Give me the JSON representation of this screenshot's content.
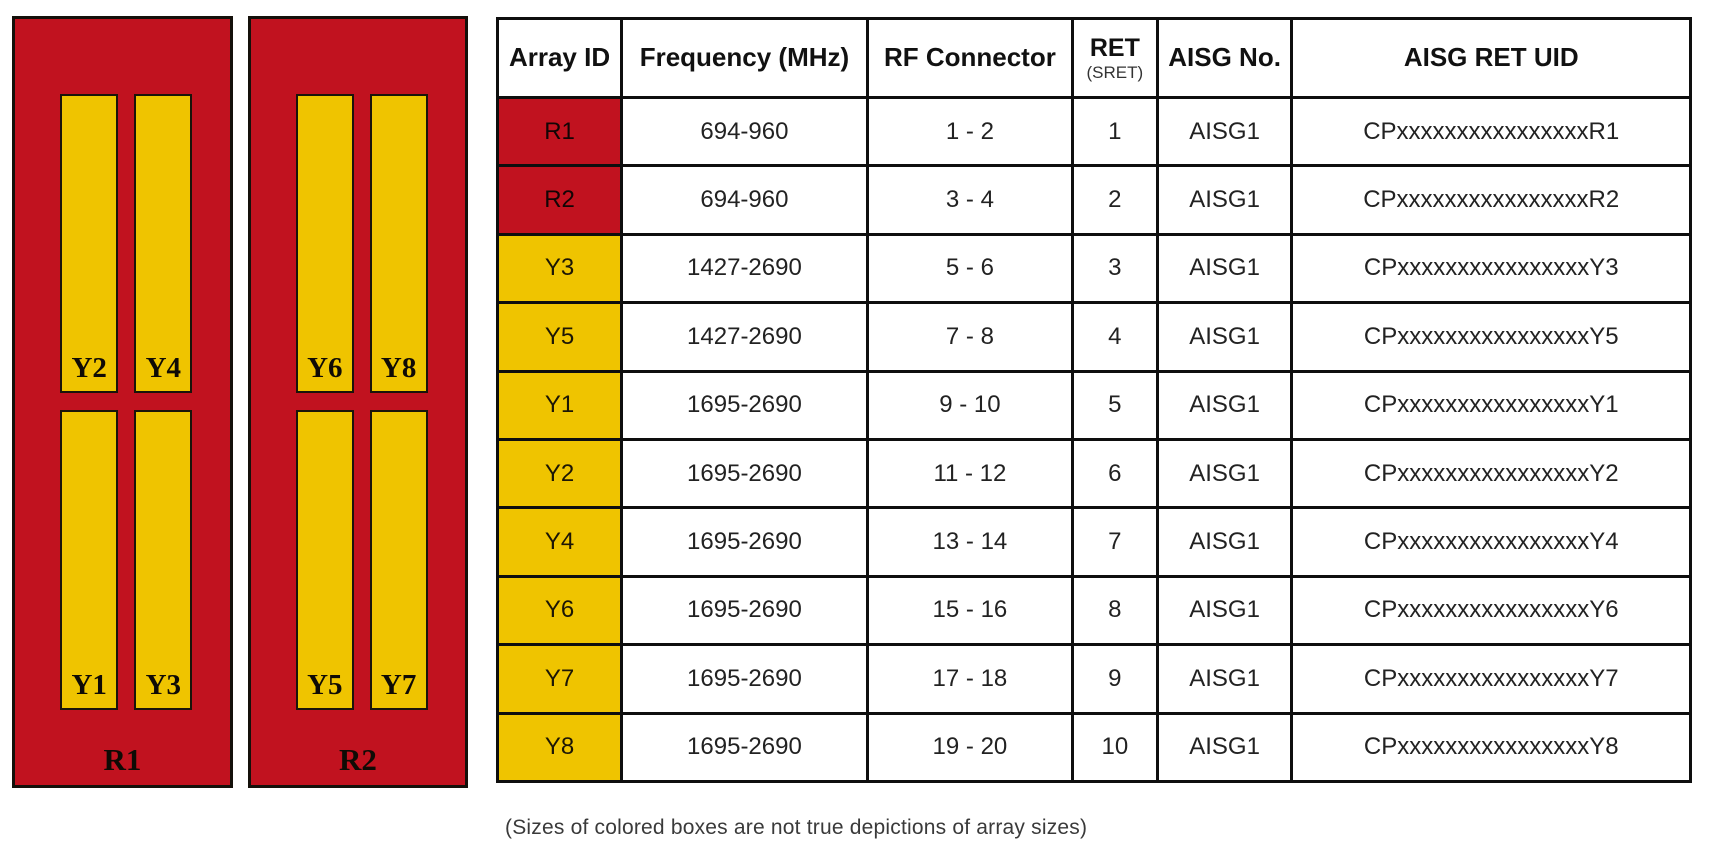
{
  "colors": {
    "red": "#C1121F",
    "yellow": "#EFC400",
    "border": "#0e0e0e"
  },
  "diagram": {
    "panels": [
      {
        "label": "R1",
        "top_bars": [
          "Y2",
          "Y4"
        ],
        "bottom_bars": [
          "Y1",
          "Y3"
        ]
      },
      {
        "label": "R2",
        "top_bars": [
          "Y6",
          "Y8"
        ],
        "bottom_bars": [
          "Y5",
          "Y7"
        ]
      }
    ]
  },
  "table": {
    "headers": {
      "array_id": "Array ID",
      "frequency": "Frequency (MHz)",
      "rf_connector": "RF Connector",
      "ret": "RET",
      "ret_sub": "(SRET)",
      "aisg_no": "AISG No.",
      "aisg_ret_uid": "AISG RET UID"
    },
    "rows": [
      {
        "array_id": "R1",
        "color": "red",
        "frequency": "694-960",
        "rf_connector": "1 - 2",
        "ret": "1",
        "aisg_no": "AISG1",
        "aisg_ret_uid": "CPxxxxxxxxxxxxxxxxR1"
      },
      {
        "array_id": "R2",
        "color": "red",
        "frequency": "694-960",
        "rf_connector": "3 - 4",
        "ret": "2",
        "aisg_no": "AISG1",
        "aisg_ret_uid": "CPxxxxxxxxxxxxxxxxR2"
      },
      {
        "array_id": "Y3",
        "color": "yellow",
        "frequency": "1427-2690",
        "rf_connector": "5 - 6",
        "ret": "3",
        "aisg_no": "AISG1",
        "aisg_ret_uid": "CPxxxxxxxxxxxxxxxxY3"
      },
      {
        "array_id": "Y5",
        "color": "yellow",
        "frequency": "1427-2690",
        "rf_connector": "7 - 8",
        "ret": "4",
        "aisg_no": "AISG1",
        "aisg_ret_uid": "CPxxxxxxxxxxxxxxxxY5"
      },
      {
        "array_id": "Y1",
        "color": "yellow",
        "frequency": "1695-2690",
        "rf_connector": "9 - 10",
        "ret": "5",
        "aisg_no": "AISG1",
        "aisg_ret_uid": "CPxxxxxxxxxxxxxxxxY1"
      },
      {
        "array_id": "Y2",
        "color": "yellow",
        "frequency": "1695-2690",
        "rf_connector": "11 - 12",
        "ret": "6",
        "aisg_no": "AISG1",
        "aisg_ret_uid": "CPxxxxxxxxxxxxxxxxY2"
      },
      {
        "array_id": "Y4",
        "color": "yellow",
        "frequency": "1695-2690",
        "rf_connector": "13 - 14",
        "ret": "7",
        "aisg_no": "AISG1",
        "aisg_ret_uid": "CPxxxxxxxxxxxxxxxxY4"
      },
      {
        "array_id": "Y6",
        "color": "yellow",
        "frequency": "1695-2690",
        "rf_connector": "15 - 16",
        "ret": "8",
        "aisg_no": "AISG1",
        "aisg_ret_uid": "CPxxxxxxxxxxxxxxxxY6"
      },
      {
        "array_id": "Y7",
        "color": "yellow",
        "frequency": "1695-2690",
        "rf_connector": "17 - 18",
        "ret": "9",
        "aisg_no": "AISG1",
        "aisg_ret_uid": "CPxxxxxxxxxxxxxxxxY7"
      },
      {
        "array_id": "Y8",
        "color": "yellow",
        "frequency": "1695-2690",
        "rf_connector": "19 - 20",
        "ret": "10",
        "aisg_no": "AISG1",
        "aisg_ret_uid": "CPxxxxxxxxxxxxxxxxY8"
      }
    ]
  },
  "caption": "(Sizes of colored boxes are not true depictions of array sizes)"
}
